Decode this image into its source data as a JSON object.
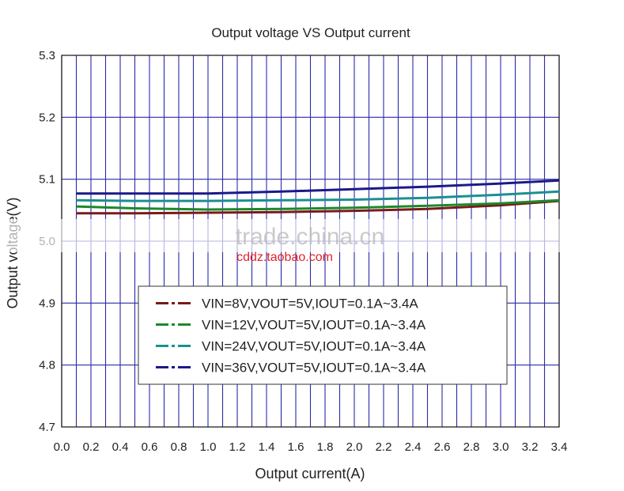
{
  "chart_data": {
    "type": "line",
    "title": "Output voltage VS Output current",
    "xlabel": "Output current(A)",
    "ylabel": "Output voltage(V)",
    "xlim": [
      0.0,
      3.4
    ],
    "ylim": [
      4.7,
      5.3
    ],
    "x_ticks": [
      "0.0",
      "0.2",
      "0.4",
      "0.6",
      "0.8",
      "1.0",
      "1.2",
      "1.4",
      "1.6",
      "1.8",
      "2.0",
      "2.2",
      "2.4",
      "2.6",
      "2.8",
      "3.0",
      "3.2",
      "3.4"
    ],
    "y_ticks": [
      "4.7",
      "4.8",
      "4.9",
      "5.0",
      "5.1",
      "5.2",
      "5.3"
    ],
    "grid": true,
    "legend_position": "lower-center",
    "x": [
      0.1,
      0.5,
      1.0,
      1.5,
      2.0,
      2.5,
      3.0,
      3.4
    ],
    "series": [
      {
        "name": "VIN=8V,VOUT=5V,IOUT=0.1A~3.4A",
        "color": "#7a1a1a",
        "values": [
          5.045,
          5.045,
          5.046,
          5.047,
          5.049,
          5.052,
          5.058,
          5.065
        ]
      },
      {
        "name": "VIN=12V,VOUT=5V,IOUT=0.1A~3.4A",
        "color": "#1a8a2a",
        "values": [
          5.056,
          5.053,
          5.051,
          5.052,
          5.054,
          5.057,
          5.061,
          5.066
        ]
      },
      {
        "name": "VIN=24V,VOUT=5V,IOUT=0.1A~3.4A",
        "color": "#1a9090",
        "values": [
          5.066,
          5.065,
          5.065,
          5.066,
          5.067,
          5.07,
          5.075,
          5.08
        ]
      },
      {
        "name": "VIN=36V,VOUT=5V,IOUT=0.1A~3.4A",
        "color": "#1a1a8a",
        "values": [
          5.077,
          5.077,
          5.077,
          5.08,
          5.084,
          5.088,
          5.093,
          5.098
        ]
      }
    ]
  },
  "watermark": {
    "main": "trade.china.cn",
    "sub": "cddz.taobao.com"
  }
}
